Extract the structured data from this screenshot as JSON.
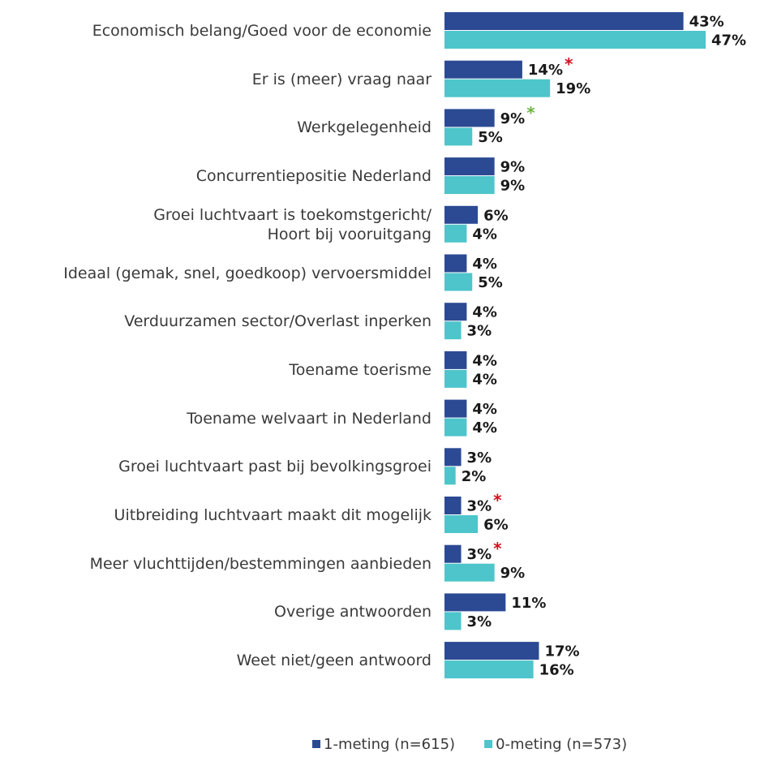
{
  "chart_data": {
    "type": "hbar",
    "categories": [
      "Economisch belang/Goed voor de economie",
      "Er is (meer) vraag naar",
      "Werkgelegenheid",
      "Concurrentiepositie Nederland",
      "Groei luchtvaart is toekomstgericht/\nHoort bij vooruitgang",
      "Ideaal (gemak, snel, goedkoop) vervoersmiddel",
      "Verduurzamen sector/Overlast inperken",
      "Toename toerisme",
      "Toename welvaart in Nederland",
      "Groei luchtvaart past bij bevolkingsgroei",
      "Uitbreiding luchtvaart maakt dit mogelijk",
      "Meer vluchttijden/bestemmingen aanbieden",
      "Overige antwoorden",
      "Weet niet/geen antwoord"
    ],
    "series": [
      {
        "name": "1-meting (n=615)",
        "color": "#2c4a93",
        "values": [
          43,
          14,
          9,
          9,
          6,
          4,
          4,
          4,
          4,
          3,
          3,
          3,
          11,
          17
        ],
        "value_labels": [
          "43%",
          "14%",
          "9%",
          "9%",
          "6%",
          "4%",
          "4%",
          "4%",
          "4%",
          "3%",
          "3%",
          "3%",
          "11%",
          "17%"
        ],
        "markers": [
          null,
          "*",
          "*",
          null,
          null,
          null,
          null,
          null,
          null,
          null,
          "*",
          "*",
          null,
          null
        ],
        "marker_colors": [
          null,
          "#d0101e",
          "#6cb33f",
          null,
          null,
          null,
          null,
          null,
          null,
          null,
          "#d0101e",
          "#d0101e",
          null,
          null
        ]
      },
      {
        "name": "0-meting (n=573)",
        "color": "#4dc5cb",
        "values": [
          47,
          19,
          5,
          9,
          4,
          5,
          3,
          4,
          4,
          2,
          6,
          9,
          3,
          16
        ],
        "value_labels": [
          "47%",
          "19%",
          "5%",
          "9%",
          "4%",
          "5%",
          "3%",
          "4%",
          "4%",
          "2%",
          "6%",
          "9%",
          "3%",
          "16%"
        ]
      }
    ]
  }
}
